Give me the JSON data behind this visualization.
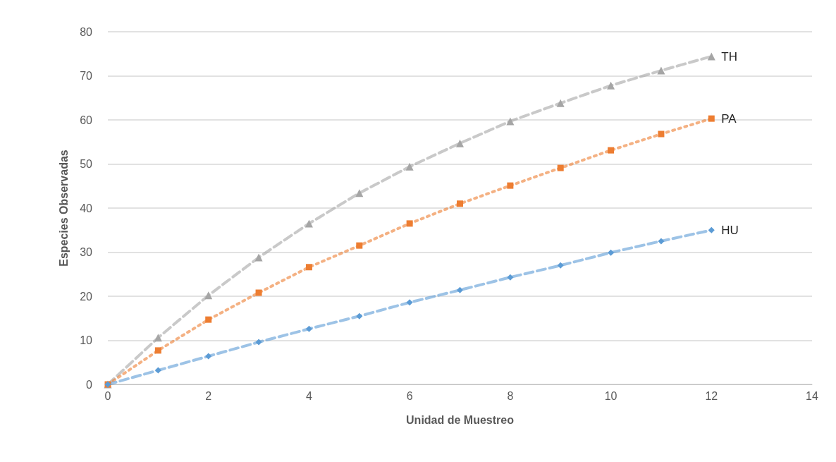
{
  "chart_data": {
    "type": "line",
    "xlabel": "Unidad de Muestreo",
    "ylabel": "Especies Observadas",
    "x": [
      0,
      1,
      2,
      3,
      4,
      5,
      6,
      7,
      8,
      9,
      10,
      11,
      12
    ],
    "series": [
      {
        "name": "TH",
        "color": "#a5a5a5",
        "marker": "triangle",
        "line_style": "dashed",
        "values": [
          0,
          10.6,
          20.2,
          28.8,
          36.5,
          43.4,
          49.4,
          54.7,
          59.7,
          63.8,
          67.8,
          71.2,
          74.4
        ]
      },
      {
        "name": "PA",
        "color": "#ed7d31",
        "marker": "square",
        "line_style": "dotted",
        "values": [
          0,
          7.7,
          14.7,
          20.8,
          26.6,
          31.5,
          36.5,
          41,
          45.1,
          49.1,
          53.1,
          56.8,
          60.3
        ]
      },
      {
        "name": "HU",
        "color": "#5b9bd5",
        "marker": "diamond",
        "line_style": "dashed",
        "values": [
          0,
          3.2,
          6.4,
          9.6,
          12.6,
          15.5,
          18.6,
          21.4,
          24.3,
          27,
          29.9,
          32.5,
          35
        ]
      }
    ],
    "xlim": [
      0,
      14
    ],
    "xticks": [
      0,
      2,
      4,
      6,
      8,
      10,
      12,
      14
    ],
    "ylim": [
      0,
      80
    ],
    "yticks": [
      0,
      10,
      20,
      30,
      40,
      50,
      60,
      70,
      80
    ],
    "grid": "y",
    "legend": false
  }
}
